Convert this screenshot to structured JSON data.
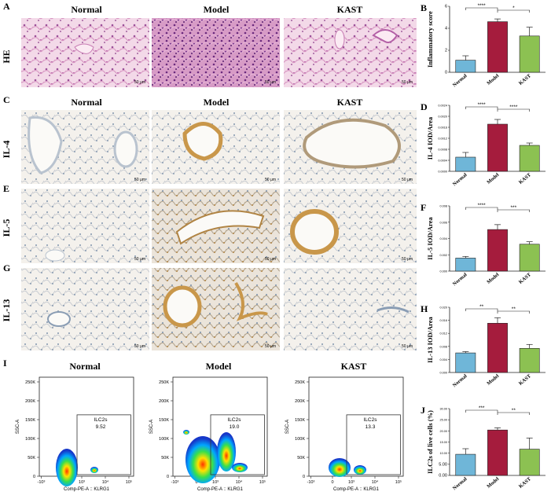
{
  "panels": {
    "A": "A",
    "B": "B",
    "C": "C",
    "D": "D",
    "E": "E",
    "F": "F",
    "G": "G",
    "H": "H",
    "I": "I",
    "J": "J"
  },
  "groups": [
    "Normal",
    "Model",
    "KAST"
  ],
  "rows": [
    {
      "label": "HE",
      "scale_bar": "50 μm"
    },
    {
      "label": "IL-4",
      "scale_bar": "50 μm"
    },
    {
      "label": "IL-5",
      "scale_bar": "50 μm"
    },
    {
      "label": "IL-13",
      "scale_bar": "50 μm"
    }
  ],
  "colors": {
    "normal": "#6fb6d8",
    "model": "#a51c3d",
    "kast": "#8cc152",
    "he_bg": "#f2d5e6",
    "he_tissue": "#c77bb3",
    "ihc_bg": "#f3f0ec",
    "ihc_tissue": "#b9c3cf",
    "ihc_stain": "#c9974a"
  },
  "flow": {
    "gate_label": "ILC2s",
    "values": [
      "9.52",
      "19.0",
      "13.3"
    ],
    "xlabel": "Comp-PE-A :: KLRG1",
    "ylabel": "SSC-A",
    "y_ticks": [
      "250K",
      "200K",
      "150K",
      "100K",
      "50K",
      "0"
    ],
    "x_ticks": [
      "-10³",
      "0",
      "10³",
      "10⁴",
      "10⁵"
    ]
  },
  "chart_data": [
    {
      "type": "bar",
      "panel": "B",
      "categories": [
        "Normal",
        "Model",
        "KAST"
      ],
      "values": [
        1.1,
        4.6,
        3.3
      ],
      "errors": [
        0.4,
        0.25,
        0.8
      ],
      "ylabel": "Inflammatory score",
      "ylim": [
        0,
        6
      ],
      "y_ticks": [
        "0",
        "2",
        "4",
        "6"
      ],
      "significance": [
        {
          "from": 0,
          "to": 1,
          "label": "****"
        },
        {
          "from": 1,
          "to": 2,
          "label": "*"
        }
      ]
    },
    {
      "type": "bar",
      "panel": "D",
      "categories": [
        "Normal",
        "Model",
        "KAST"
      ],
      "values": [
        0.0006,
        0.002,
        0.0011
      ],
      "errors": [
        0.0002,
        0.0002,
        0.0001
      ],
      "ylabel": "IL-4 IOD/Area",
      "ylim": [
        0,
        0.0028
      ],
      "y_ticks": [
        "0.0000",
        "0.0004",
        "0.0008",
        "0.0012",
        "0.0016",
        "0.0020",
        "0.0024"
      ],
      "significance": [
        {
          "from": 0,
          "to": 1,
          "label": "****"
        },
        {
          "from": 1,
          "to": 2,
          "label": "****"
        }
      ]
    },
    {
      "type": "bar",
      "panel": "F",
      "categories": [
        "Normal",
        "Model",
        "KAST"
      ],
      "values": [
        0.0016,
        0.0051,
        0.0033
      ],
      "errors": [
        0.0002,
        0.0006,
        0.0003
      ],
      "ylabel": "IL-5 IOD/Area",
      "ylim": [
        0,
        0.008
      ],
      "y_ticks": [
        "0.000",
        "0.002",
        "0.004",
        "0.006",
        "0.008"
      ],
      "significance": [
        {
          "from": 0,
          "to": 1,
          "label": "****"
        },
        {
          "from": 1,
          "to": 2,
          "label": "***"
        }
      ]
    },
    {
      "type": "bar",
      "panel": "H",
      "categories": [
        "Normal",
        "Model",
        "KAST"
      ],
      "values": [
        0.006,
        0.0151,
        0.0074
      ],
      "errors": [
        0.0004,
        0.0017,
        0.0012
      ],
      "ylabel": "IL-13 IOD/Area",
      "ylim": [
        0,
        0.02
      ],
      "y_ticks": [
        "0.000",
        "0.004",
        "0.008",
        "0.012",
        "0.016",
        "0.020"
      ],
      "significance": [
        {
          "from": 0,
          "to": 1,
          "label": "**"
        },
        {
          "from": 1,
          "to": 2,
          "label": "**"
        }
      ]
    },
    {
      "type": "bar",
      "panel": "J",
      "categories": [
        "Normal",
        "Model",
        "KAST"
      ],
      "values": [
        9.5,
        20.4,
        11.8
      ],
      "errors": [
        2.5,
        1.0,
        5.0
      ],
      "ylabel": "ILC2s of live cells (%)",
      "ylim": [
        0,
        30
      ],
      "y_ticks": [
        "0.00",
        "5.00",
        "10.00",
        "15.00",
        "20.00",
        "25.00",
        "30.00"
      ],
      "significance": [
        {
          "from": 0,
          "to": 1,
          "label": "***"
        },
        {
          "from": 1,
          "to": 2,
          "label": "**"
        }
      ]
    }
  ]
}
